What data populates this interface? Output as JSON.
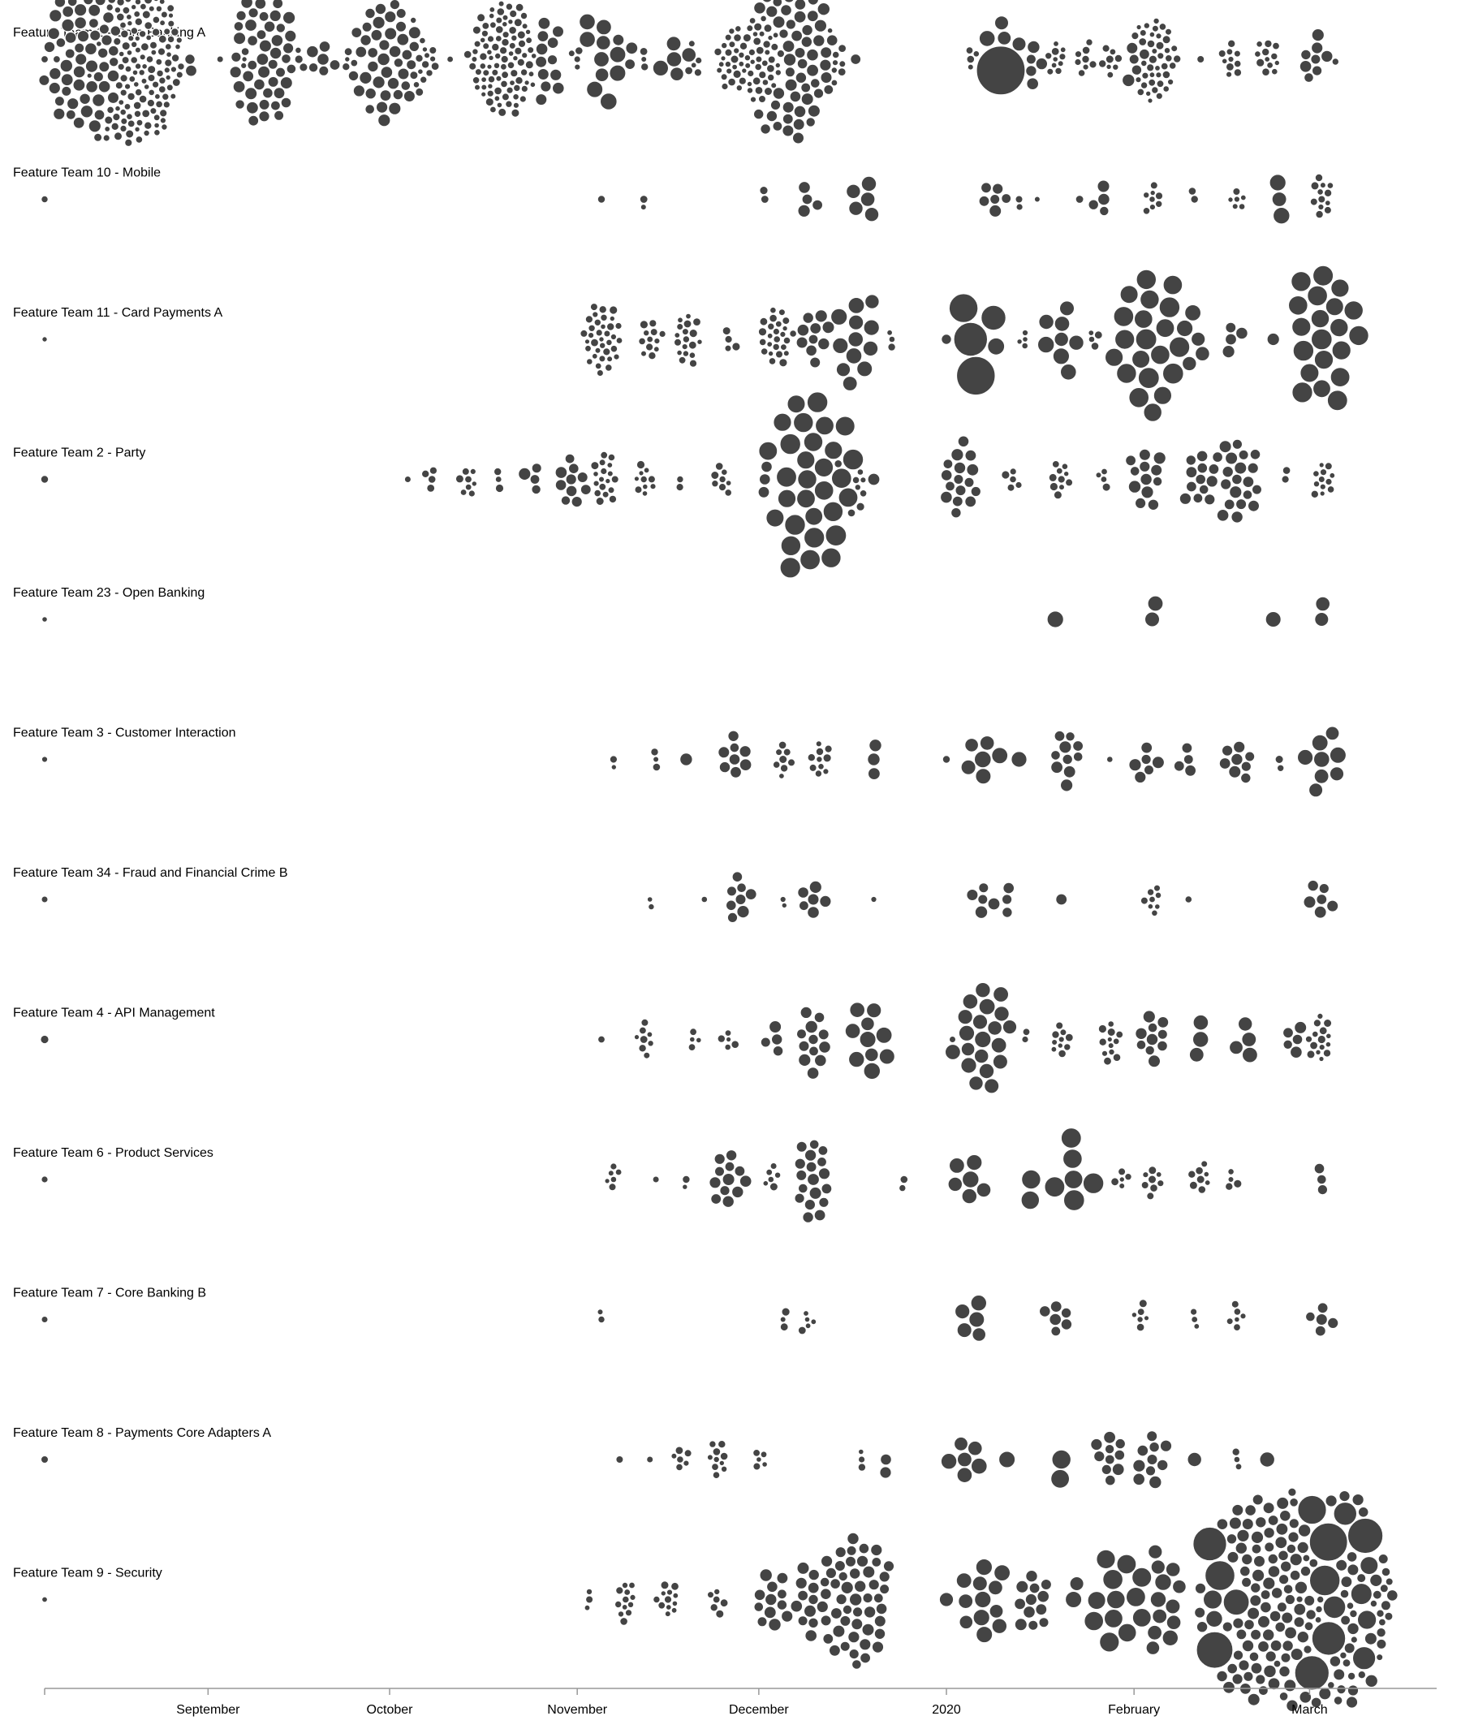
{
  "chart_data": {
    "type": "scatter",
    "subtype": "beeswarm",
    "title": "",
    "xlabel": "",
    "ylabel": "",
    "x_axis": {
      "type": "time",
      "domain": [
        "2019-08-05",
        "2020-03-22"
      ],
      "ticks": [
        {
          "date": "2019-09-01",
          "label": "September"
        },
        {
          "date": "2019-10-01",
          "label": "October"
        },
        {
          "date": "2019-11-01",
          "label": "November"
        },
        {
          "date": "2019-12-01",
          "label": "December"
        },
        {
          "date": "2020-01-01",
          "label": "2020"
        },
        {
          "date": "2020-02-01",
          "label": "February"
        },
        {
          "date": "2020-03-01",
          "label": "March"
        }
      ]
    },
    "mark_color": "#444444",
    "mark_stroke": "#ffffff",
    "rows": [
      {
        "name": "Feature Team 1 - Core Banking A",
        "groups": [
          [
            "2019-08-05",
            1,
            1
          ],
          [
            "2019-08-07",
            1,
            1
          ],
          [
            "2019-08-11",
            55,
            2
          ],
          [
            "2019-08-16",
            90,
            1
          ],
          [
            "2019-08-20",
            60,
            1
          ],
          [
            "2019-08-29",
            2,
            2
          ],
          [
            "2019-09-03",
            1,
            1
          ],
          [
            "2019-09-07",
            3,
            1
          ],
          [
            "2019-09-10",
            45,
            2
          ],
          [
            "2019-09-16",
            3,
            1
          ],
          [
            "2019-09-20",
            6,
            2
          ],
          [
            "2019-09-24",
            4,
            1
          ],
          [
            "2019-09-30",
            40,
            2
          ],
          [
            "2019-10-04",
            12,
            1
          ],
          [
            "2019-10-08",
            3,
            1
          ],
          [
            "2019-10-11",
            1,
            1
          ],
          [
            "2019-10-15",
            4,
            1
          ],
          [
            "2019-10-20",
            90,
            1
          ],
          [
            "2019-10-26",
            12,
            2
          ],
          [
            "2019-11-01",
            4,
            1
          ],
          [
            "2019-11-05",
            10,
            3
          ],
          [
            "2019-11-08",
            3,
            2
          ],
          [
            "2019-11-12",
            3,
            1
          ],
          [
            "2019-11-17",
            5,
            3
          ],
          [
            "2019-11-20",
            5,
            1
          ],
          [
            "2019-11-27",
            30,
            1
          ],
          [
            "2019-12-01",
            35,
            1
          ],
          [
            "2019-12-06",
            55,
            2
          ],
          [
            "2019-12-12",
            8,
            1
          ],
          [
            "2019-12-17",
            1,
            2
          ],
          [
            "2020-01-05",
            4,
            1
          ],
          [
            "2020-01-09",
            1,
            9
          ],
          [
            "2020-01-10",
            4,
            3
          ],
          [
            "2020-01-15",
            5,
            2
          ],
          [
            "2020-01-19",
            10,
            1
          ],
          [
            "2020-01-24",
            8,
            1
          ],
          [
            "2020-01-28",
            8,
            1
          ],
          [
            "2020-02-01",
            5,
            2
          ],
          [
            "2020-02-04",
            40,
            1
          ],
          [
            "2020-02-08",
            1,
            1
          ],
          [
            "2020-02-12",
            1,
            1
          ],
          [
            "2020-02-17",
            10,
            1
          ],
          [
            "2020-02-23",
            12,
            1
          ],
          [
            "2020-03-02",
            8,
            2
          ],
          [
            "2020-03-05",
            1,
            1
          ]
        ]
      },
      {
        "name": "Feature Team 10 - Mobile",
        "groups": [
          [
            "2019-08-05",
            1,
            1
          ],
          [
            "2019-11-05",
            1,
            1
          ],
          [
            "2019-11-12",
            2,
            1
          ],
          [
            "2019-12-02",
            2,
            1
          ],
          [
            "2019-12-09",
            4,
            2
          ],
          [
            "2019-12-19",
            5,
            3
          ],
          [
            "2020-01-09",
            6,
            2
          ],
          [
            "2020-01-13",
            2,
            1
          ],
          [
            "2020-01-16",
            1,
            1
          ],
          [
            "2020-01-23",
            1,
            1
          ],
          [
            "2020-01-27",
            4,
            2
          ],
          [
            "2020-02-04",
            8,
            1
          ],
          [
            "2020-02-11",
            2,
            1
          ],
          [
            "2020-02-18",
            6,
            1
          ],
          [
            "2020-02-25",
            3,
            3
          ],
          [
            "2020-03-03",
            12,
            1
          ]
        ]
      },
      {
        "name": "Feature Team 11 - Card Payments A",
        "groups": [
          [
            "2019-08-05",
            1,
            1
          ],
          [
            "2019-11-05",
            35,
            1
          ],
          [
            "2019-11-13",
            12,
            1
          ],
          [
            "2019-11-19",
            18,
            1
          ],
          [
            "2019-11-26",
            4,
            1
          ],
          [
            "2019-12-04",
            25,
            1
          ],
          [
            "2019-12-10",
            10,
            2
          ],
          [
            "2019-12-17",
            12,
            3
          ],
          [
            "2019-12-23",
            3,
            1
          ],
          [
            "2020-01-01",
            1,
            2
          ],
          [
            "2020-01-05",
            5,
            5
          ],
          [
            "2020-01-14",
            4,
            1
          ],
          [
            "2020-01-20",
            8,
            3
          ],
          [
            "2020-01-25",
            4,
            1
          ],
          [
            "2020-02-03",
            20,
            4
          ],
          [
            "2020-02-09",
            5,
            3
          ],
          [
            "2020-02-17",
            4,
            2
          ],
          [
            "2020-02-24",
            1,
            2
          ],
          [
            "2020-03-03",
            20,
            4
          ]
        ]
      },
      {
        "name": "Feature Team 2 - Party",
        "groups": [
          [
            "2019-08-05",
            1,
            1
          ],
          [
            "2019-10-04",
            1,
            1
          ],
          [
            "2019-10-08",
            4,
            1
          ],
          [
            "2019-10-14",
            8,
            1
          ],
          [
            "2019-10-19",
            3,
            1
          ],
          [
            "2019-10-25",
            4,
            2
          ],
          [
            "2019-10-31",
            10,
            2
          ],
          [
            "2019-11-05",
            18,
            1
          ],
          [
            "2019-11-12",
            10,
            1
          ],
          [
            "2019-11-18",
            2,
            1
          ],
          [
            "2019-11-25",
            8,
            1
          ],
          [
            "2019-12-02",
            3,
            2
          ],
          [
            "2019-12-09",
            30,
            4
          ],
          [
            "2019-12-16",
            8,
            1
          ],
          [
            "2019-12-20",
            1,
            2
          ],
          [
            "2020-01-03",
            16,
            2
          ],
          [
            "2020-01-12",
            5,
            1
          ],
          [
            "2020-01-20",
            10,
            1
          ],
          [
            "2020-01-27",
            4,
            1
          ],
          [
            "2020-02-03",
            12,
            2
          ],
          [
            "2020-02-12",
            12,
            2
          ],
          [
            "2020-02-18",
            20,
            2
          ],
          [
            "2020-02-26",
            2,
            1
          ],
          [
            "2020-03-03",
            12,
            1
          ]
        ]
      },
      {
        "name": "Feature Team 23 - Open Banking",
        "groups": [
          [
            "2019-08-05",
            1,
            1
          ],
          [
            "2020-01-19",
            1,
            3
          ],
          [
            "2020-02-04",
            2,
            3
          ],
          [
            "2020-02-24",
            1,
            3
          ],
          [
            "2020-03-03",
            2,
            3
          ]
        ]
      },
      {
        "name": "Feature Team 3 - Customer Interaction",
        "groups": [
          [
            "2019-08-05",
            1,
            1
          ],
          [
            "2019-11-07",
            2,
            1
          ],
          [
            "2019-11-14",
            3,
            1
          ],
          [
            "2019-11-19",
            1,
            2
          ],
          [
            "2019-11-27",
            8,
            2
          ],
          [
            "2019-12-05",
            8,
            1
          ],
          [
            "2019-12-11",
            10,
            1
          ],
          [
            "2019-12-20",
            3,
            2
          ],
          [
            "2020-01-01",
            1,
            1
          ],
          [
            "2020-01-07",
            6,
            3
          ],
          [
            "2020-01-13",
            1,
            3
          ],
          [
            "2020-01-21",
            10,
            2
          ],
          [
            "2020-01-28",
            1,
            1
          ],
          [
            "2020-02-03",
            6,
            2
          ],
          [
            "2020-02-10",
            4,
            2
          ],
          [
            "2020-02-18",
            8,
            2
          ],
          [
            "2020-02-25",
            2,
            1
          ],
          [
            "2020-03-03",
            8,
            3
          ]
        ]
      },
      {
        "name": "Feature Team 34 - Fraud and Financial Crime B",
        "groups": [
          [
            "2019-08-05",
            1,
            1
          ],
          [
            "2019-11-13",
            2,
            1
          ],
          [
            "2019-11-22",
            1,
            1
          ],
          [
            "2019-11-28",
            8,
            2
          ],
          [
            "2019-12-05",
            2,
            1
          ],
          [
            "2019-12-10",
            6,
            2
          ],
          [
            "2019-12-20",
            1,
            1
          ],
          [
            "2020-01-07",
            5,
            2
          ],
          [
            "2020-01-11",
            3,
            2
          ],
          [
            "2020-01-20",
            1,
            2
          ],
          [
            "2020-02-04",
            8,
            1
          ],
          [
            "2020-02-10",
            1,
            1
          ],
          [
            "2020-03-03",
            6,
            2
          ]
        ]
      },
      {
        "name": "Feature Team 4 - API Management",
        "groups": [
          [
            "2019-08-05",
            1,
            1
          ],
          [
            "2019-11-05",
            1,
            1
          ],
          [
            "2019-11-12",
            8,
            1
          ],
          [
            "2019-11-20",
            4,
            1
          ],
          [
            "2019-11-26",
            5,
            1
          ],
          [
            "2019-12-04",
            4,
            2
          ],
          [
            "2019-12-10",
            12,
            2
          ],
          [
            "2019-12-19",
            10,
            3
          ],
          [
            "2020-01-02",
            1,
            1
          ],
          [
            "2020-01-07",
            20,
            3
          ],
          [
            "2020-01-14",
            2,
            1
          ],
          [
            "2020-01-20",
            10,
            1
          ],
          [
            "2020-01-28",
            12,
            1
          ],
          [
            "2020-02-04",
            10,
            2
          ],
          [
            "2020-02-12",
            3,
            3
          ],
          [
            "2020-02-20",
            4,
            3
          ],
          [
            "2020-02-28",
            5,
            2
          ],
          [
            "2020-03-03",
            15,
            1
          ]
        ]
      },
      {
        "name": "Feature Team 6 - Product Services",
        "groups": [
          [
            "2019-08-05",
            1,
            1
          ],
          [
            "2019-11-07",
            6,
            1
          ],
          [
            "2019-11-14",
            1,
            1
          ],
          [
            "2019-11-19",
            2,
            1
          ],
          [
            "2019-11-26",
            12,
            2
          ],
          [
            "2019-12-03",
            6,
            1
          ],
          [
            "2019-12-10",
            18,
            2
          ],
          [
            "2019-12-25",
            2,
            1
          ],
          [
            "2020-01-05",
            6,
            3
          ],
          [
            "2020-01-15",
            2,
            4
          ],
          [
            "2020-01-22",
            6,
            4
          ],
          [
            "2020-01-30",
            5,
            1
          ],
          [
            "2020-02-04",
            8,
            1
          ],
          [
            "2020-02-12",
            8,
            1
          ],
          [
            "2020-02-17",
            4,
            1
          ],
          [
            "2020-03-03",
            3,
            2
          ]
        ]
      },
      {
        "name": "Feature Team 7 - Core Banking B",
        "groups": [
          [
            "2019-08-05",
            1,
            1
          ],
          [
            "2019-11-05",
            2,
            1
          ],
          [
            "2019-12-05",
            3,
            1
          ],
          [
            "2019-12-09",
            5,
            1
          ],
          [
            "2020-01-06",
            5,
            3
          ],
          [
            "2020-01-19",
            6,
            2
          ],
          [
            "2020-02-02",
            6,
            1
          ],
          [
            "2020-02-11",
            3,
            1
          ],
          [
            "2020-02-18",
            6,
            1
          ],
          [
            "2020-03-03",
            5,
            2
          ]
        ]
      },
      {
        "name": "Feature Team 8 - Payments Core Adapters A",
        "groups": [
          [
            "2019-08-05",
            1,
            1
          ],
          [
            "2019-11-08",
            1,
            1
          ],
          [
            "2019-11-13",
            1,
            1
          ],
          [
            "2019-11-18",
            6,
            1
          ],
          [
            "2019-11-24",
            10,
            1
          ],
          [
            "2019-12-01",
            5,
            1
          ],
          [
            "2019-12-18",
            3,
            1
          ],
          [
            "2019-12-22",
            2,
            2
          ],
          [
            "2020-01-04",
            6,
            3
          ],
          [
            "2020-01-11",
            1,
            3
          ],
          [
            "2020-01-20",
            2,
            4
          ],
          [
            "2020-01-28",
            10,
            2
          ],
          [
            "2020-02-04",
            10,
            2
          ],
          [
            "2020-02-11",
            1,
            3
          ],
          [
            "2020-02-18",
            3,
            1
          ],
          [
            "2020-02-23",
            1,
            3
          ]
        ]
      },
      {
        "name": "Feature Team 9 - Security",
        "groups": [
          [
            "2019-08-05",
            1,
            1
          ],
          [
            "2019-11-03",
            3,
            1
          ],
          [
            "2019-11-09",
            12,
            1
          ],
          [
            "2019-11-16",
            12,
            1
          ],
          [
            "2019-11-24",
            6,
            1
          ],
          [
            "2019-12-03",
            12,
            2
          ],
          [
            "2019-12-10",
            15,
            2
          ],
          [
            "2019-12-17",
            45,
            2
          ],
          [
            "2020-01-01",
            1,
            3
          ],
          [
            "2020-01-07",
            12,
            3
          ],
          [
            "2020-01-15",
            12,
            2
          ],
          [
            "2020-01-22",
            2,
            3
          ],
          [
            "2020-01-29",
            12,
            4
          ],
          [
            "2020-02-05",
            12,
            3
          ],
          [
            "2020-02-14",
            6,
            7
          ],
          [
            "2020-02-21",
            90,
            2
          ],
          [
            "2020-02-28",
            35,
            5
          ],
          [
            "2020-03-05",
            40,
            7
          ]
        ]
      }
    ]
  }
}
